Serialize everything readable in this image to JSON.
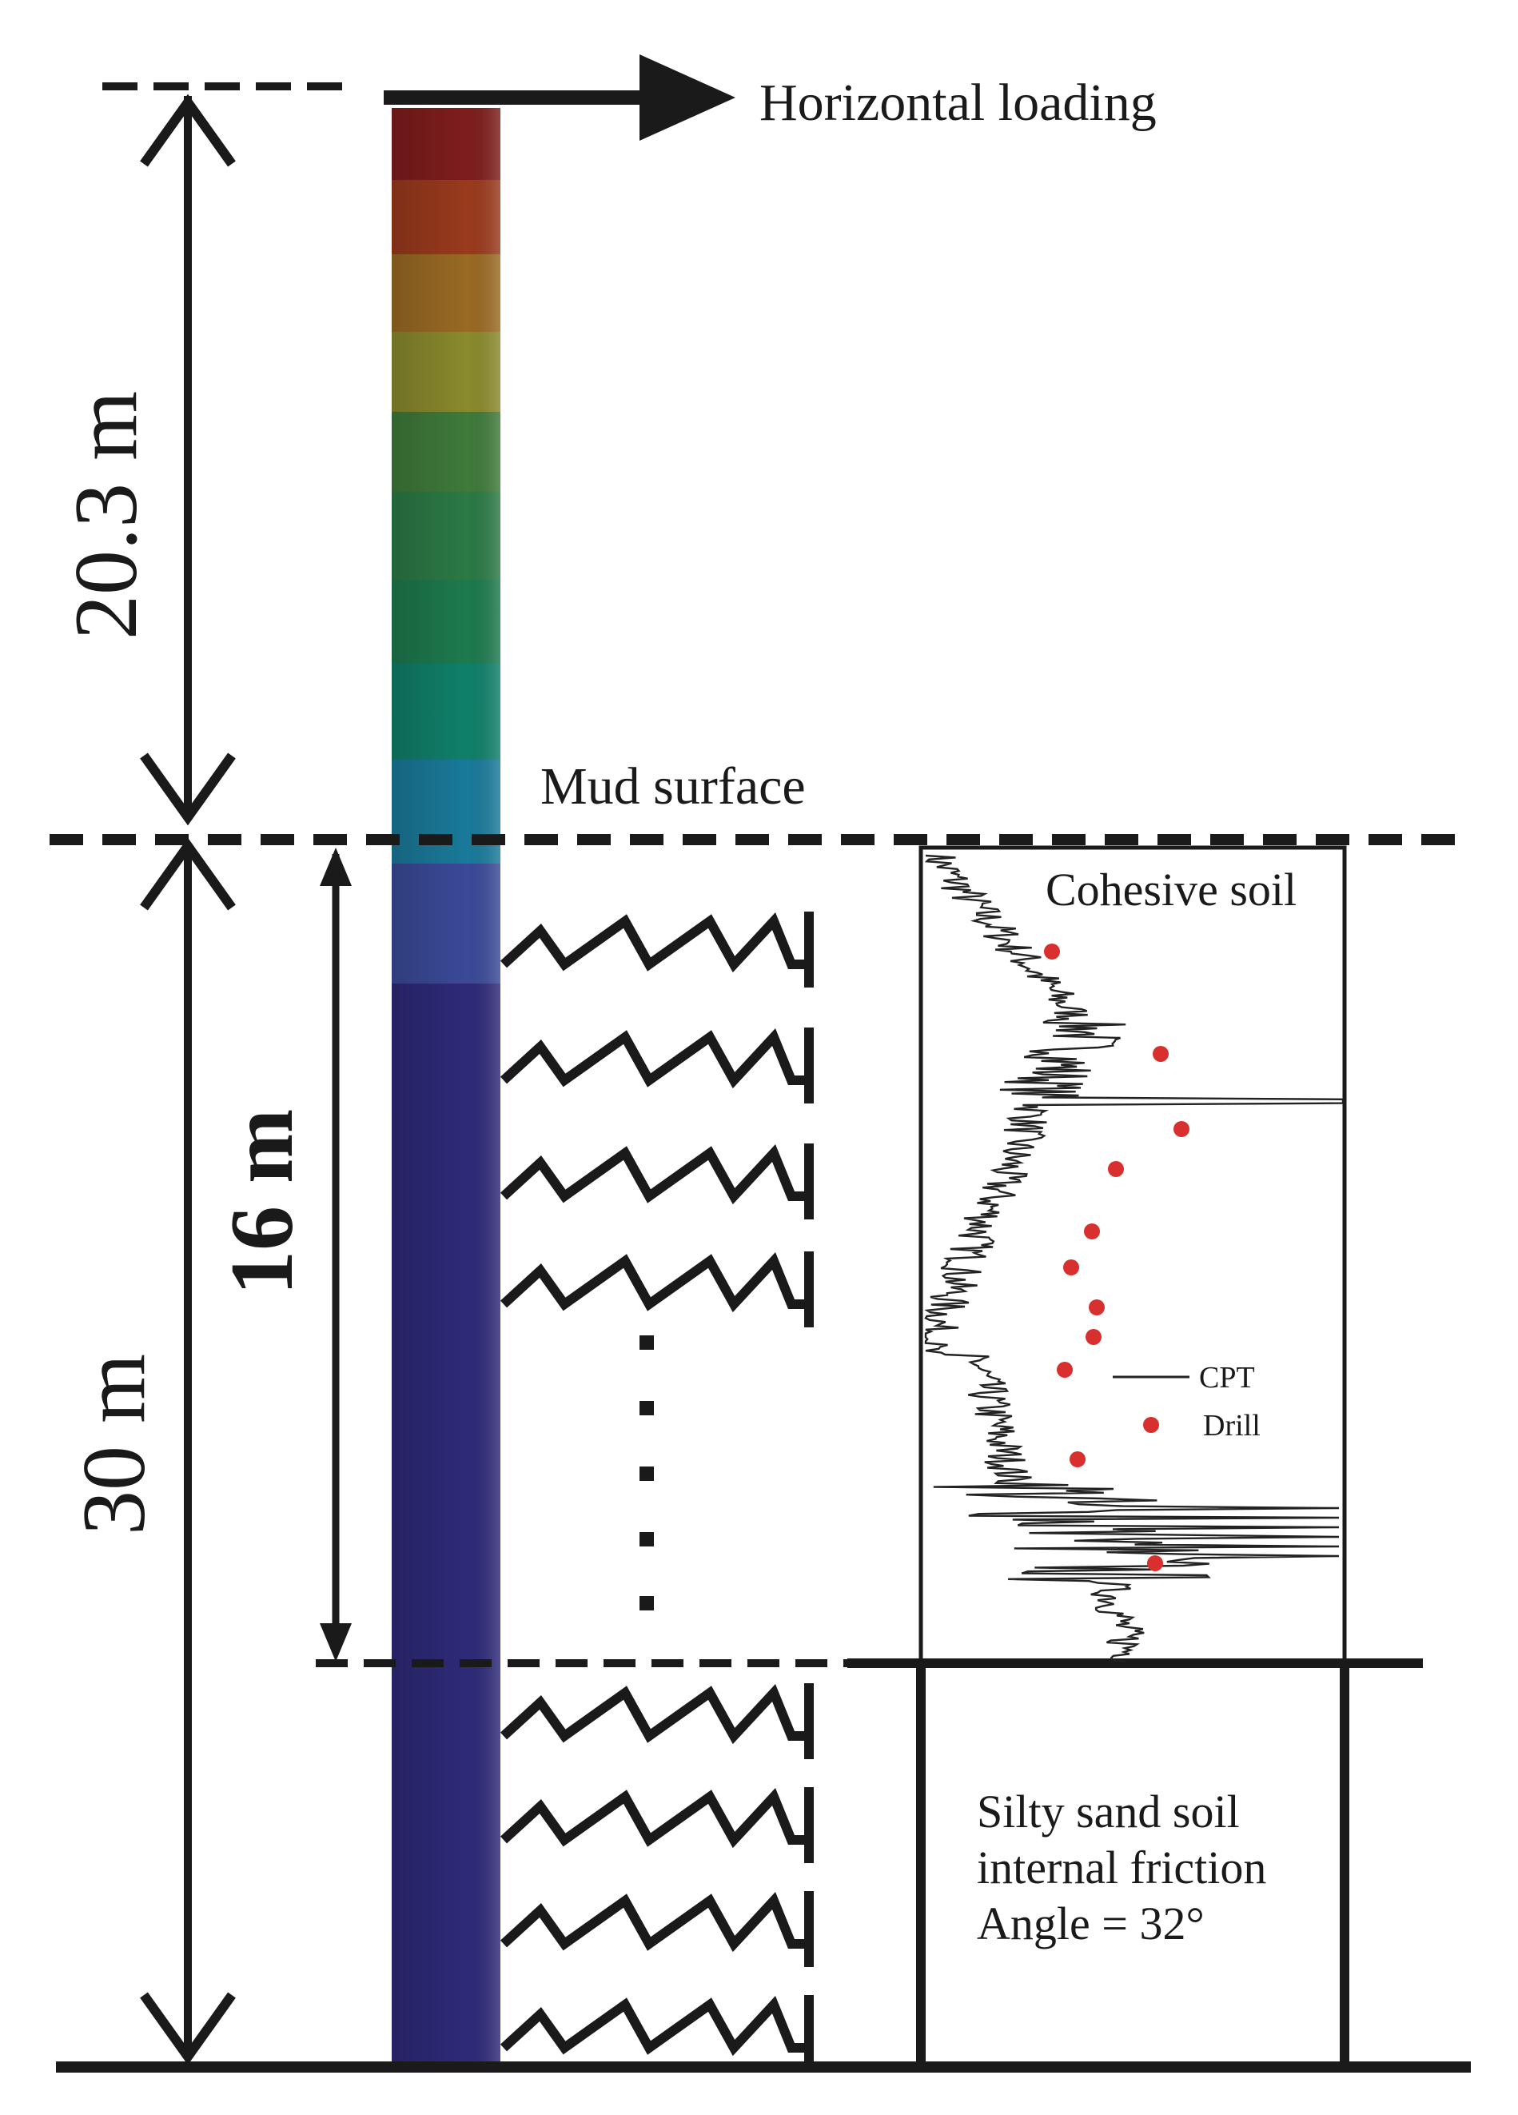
{
  "labels": {
    "horizontal_loading": "Horizontal loading",
    "mud_surface": "Mud surface",
    "pile_above_mudline": "20.3 m",
    "embedded_length": "30 m",
    "cohesive_layer_depth": "16 m",
    "cohesive_soil": "Cohesive soil",
    "silty_sand_line1": "Silty sand soil",
    "silty_sand_line2": "internal friction",
    "silty_sand_line3": "Angle = 32°",
    "legend_cpt": "CPT",
    "legend_drill": "Drill"
  },
  "pile_colormap": [
    "#7f1d1d",
    "#9a3a1c",
    "#9a6a24",
    "#8a8a2e",
    "#3f7a3a",
    "#2b7a45",
    "#1d7a4e",
    "#10806a",
    "#1a7a9a",
    "#3a4a98",
    "#2e2a78"
  ],
  "colors": {
    "line": "#1a1a1a",
    "drill_marker": "#d7302e",
    "cpt_trace": "#222222"
  },
  "spring_count_cohesive": 4,
  "spring_count_sand": 4
}
